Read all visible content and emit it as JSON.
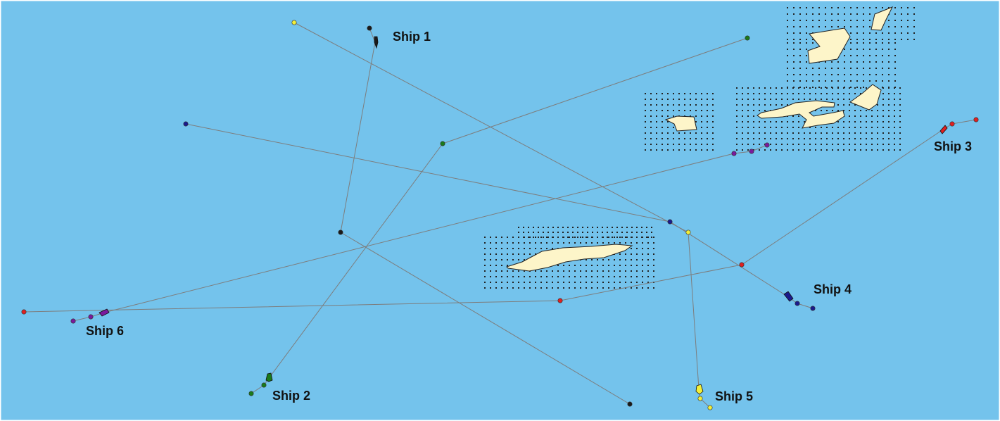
{
  "map": {
    "background_color": "#74c3ec",
    "route_color": "#7d7d7d",
    "land_color": "#fdf5c9",
    "shallow_marker": "dotted-shoal-pattern"
  },
  "ships": [
    {
      "id": "ship1",
      "label": "Ship 1",
      "color": "#1a1a1a"
    },
    {
      "id": "ship2",
      "label": "Ship 2",
      "color": "#1a7a1a"
    },
    {
      "id": "ship3",
      "label": "Ship 3",
      "color": "#e02020"
    },
    {
      "id": "ship4",
      "label": "Ship 4",
      "color": "#1a1a8c"
    },
    {
      "id": "ship5",
      "label": "Ship 5",
      "color": "#f2ef3a"
    },
    {
      "id": "ship6",
      "label": "Ship 6",
      "color": "#7a1a9c"
    }
  ]
}
